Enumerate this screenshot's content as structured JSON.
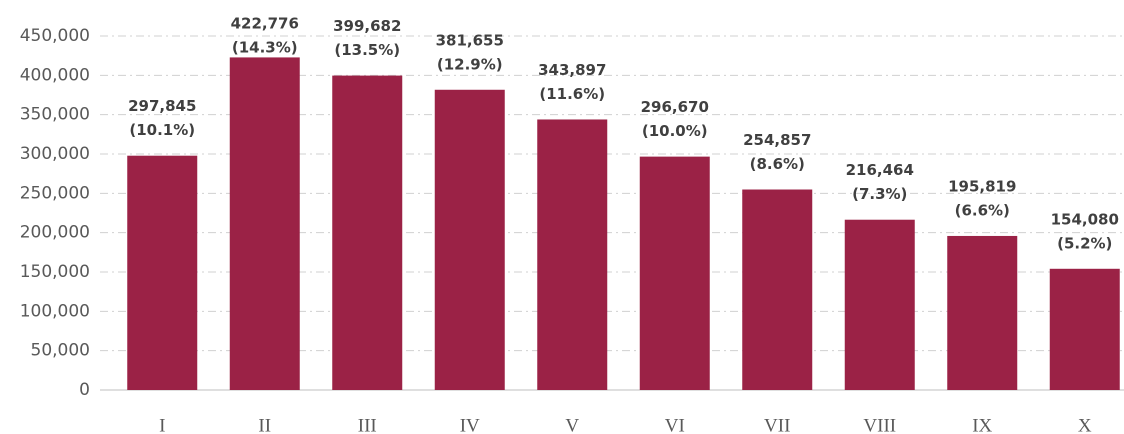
{
  "chart_data": {
    "type": "bar",
    "categories": [
      "I",
      "II",
      "III",
      "IV",
      "V",
      "VI",
      "VII",
      "VIII",
      "IX",
      "X"
    ],
    "values": [
      297845,
      422776,
      399682,
      381655,
      343897,
      296670,
      254857,
      216464,
      195819,
      154080
    ],
    "value_labels": [
      "297,845",
      "422,776",
      "399,682",
      "381,655",
      "343,897",
      "296,670",
      "254,857",
      "216,464",
      "195,819",
      "154,080"
    ],
    "shares": [
      10.1,
      14.3,
      13.5,
      12.9,
      11.6,
      10.0,
      8.6,
      7.3,
      6.6,
      5.2
    ],
    "share_labels": [
      "(10.1%)",
      "(14.3%)",
      "(13.5%)",
      "(12.9%)",
      "(11.6%)",
      "(10.0%)",
      "(8.6%)",
      "(7.3%)",
      "(6.6%)",
      "(5.2%)"
    ],
    "color": "#9b2246",
    "ylim": [
      0,
      450000
    ],
    "yticks": [
      0,
      {
        "value": 50000,
        "label": "50,000"
      },
      {
        "value": 100000,
        "label": "100,000"
      },
      {
        "value": 150000,
        "label": "150,000"
      },
      {
        "value": 200000,
        "label": "200,000"
      },
      {
        "value": 250000,
        "label": "250,000"
      },
      {
        "value": 300000,
        "label": "300,000"
      },
      {
        "value": 350000,
        "label": "350,000"
      },
      {
        "value": 400000,
        "label": "400,000"
      },
      {
        "value": 450000,
        "label": "450,000"
      }
    ],
    "grid": true
  }
}
